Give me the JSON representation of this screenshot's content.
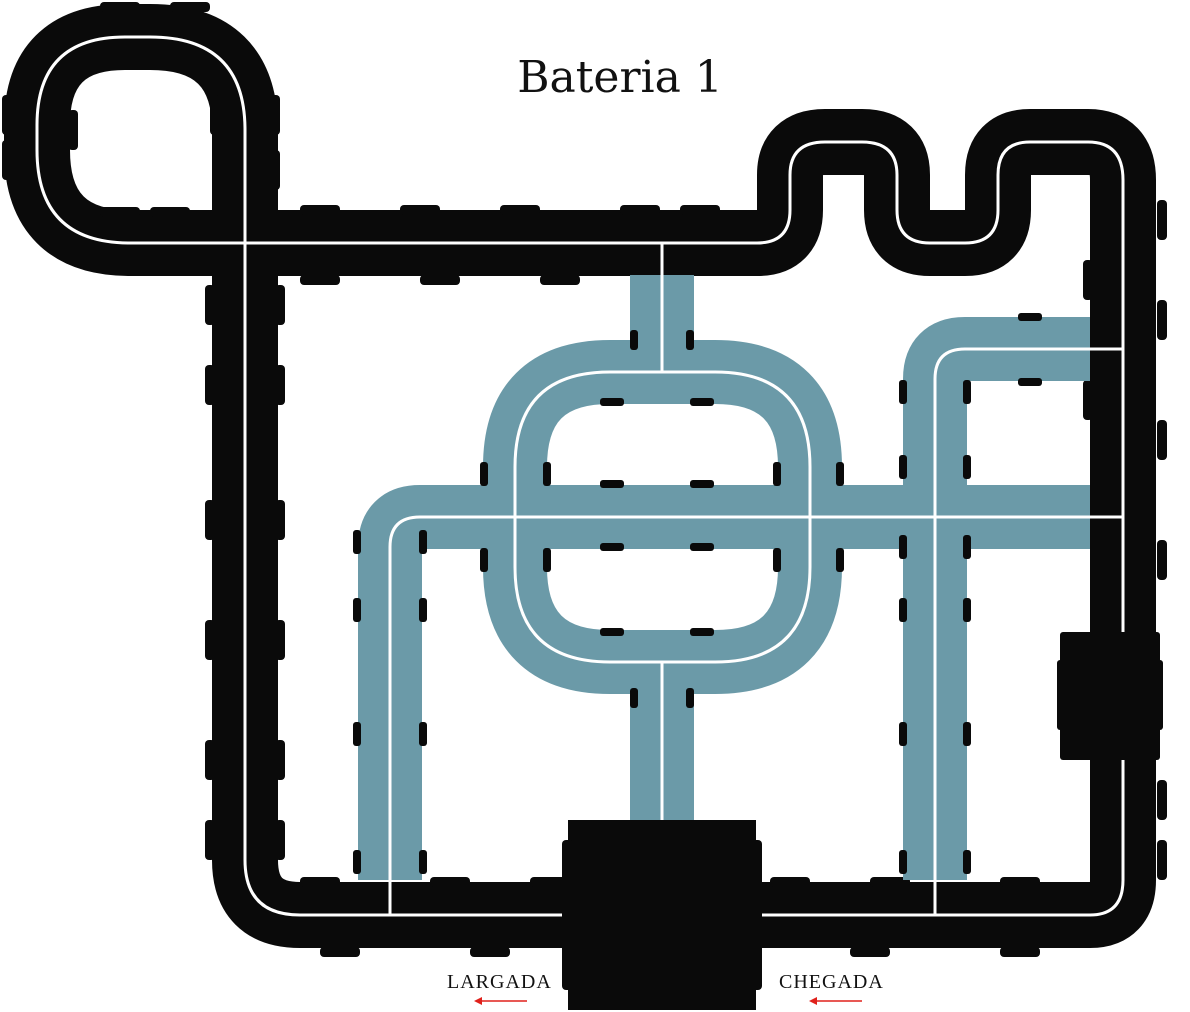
{
  "title": "Bateria 1",
  "start_label": "LARGADA",
  "finish_label": "CHEGADA",
  "colors": {
    "track": "#0a0a0a",
    "branch_track": "#6b9aa8",
    "center_line": "#ffffff",
    "arrow": "#e0211b"
  }
}
